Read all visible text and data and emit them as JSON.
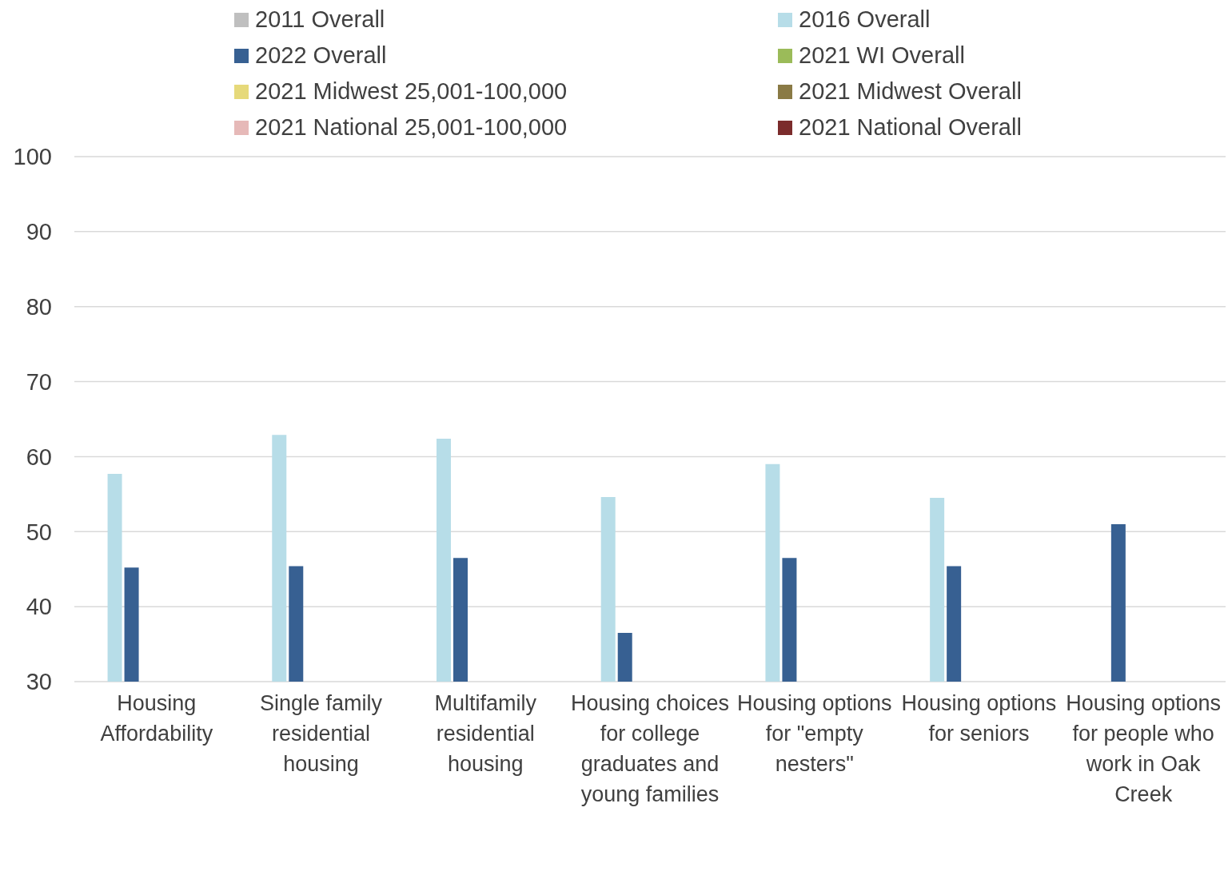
{
  "chart_data": {
    "type": "bar",
    "categories": [
      "Housing Affordability",
      "Single family residential housing",
      "Multifamily residential housing",
      "Housing choices for college graduates and young families",
      "Housing options for \"empty nesters\"",
      "Housing options for seniors",
      "Housing options for people who work in Oak Creek"
    ],
    "series": [
      {
        "name": "2011 Overall",
        "color": "#bfbfbf",
        "values": [
          null,
          null,
          null,
          null,
          null,
          null,
          null
        ]
      },
      {
        "name": "2016 Overall",
        "color": "#b7dde8",
        "values": [
          57.7,
          62.9,
          62.4,
          54.6,
          59.0,
          54.5,
          null
        ]
      },
      {
        "name": "2022 Overall",
        "color": "#376092",
        "values": [
          45.2,
          45.4,
          46.5,
          36.5,
          46.5,
          45.4,
          51.0
        ]
      },
      {
        "name": "2021 WI Overall",
        "color": "#9bbb59",
        "values": [
          null,
          null,
          null,
          null,
          null,
          null,
          null
        ]
      },
      {
        "name": "2021 Midwest 25,001-100,000",
        "color": "#e6d97a",
        "values": [
          null,
          null,
          null,
          null,
          null,
          null,
          null
        ]
      },
      {
        "name": "2021 Midwest Overall",
        "color": "#8a7a45",
        "values": [
          null,
          null,
          null,
          null,
          null,
          null,
          null
        ]
      },
      {
        "name": "2021 National 25,001-100,000",
        "color": "#e6b9b8",
        "values": [
          null,
          null,
          null,
          null,
          null,
          null,
          null
        ]
      },
      {
        "name": "2021 National Overall",
        "color": "#7b2c2c",
        "values": [
          null,
          null,
          null,
          null,
          null,
          null,
          null
        ]
      }
    ],
    "ylim": [
      30,
      100
    ],
    "yticks": [
      30,
      40,
      50,
      60,
      70,
      80,
      90,
      100
    ],
    "grid": "y",
    "legend": "top"
  }
}
